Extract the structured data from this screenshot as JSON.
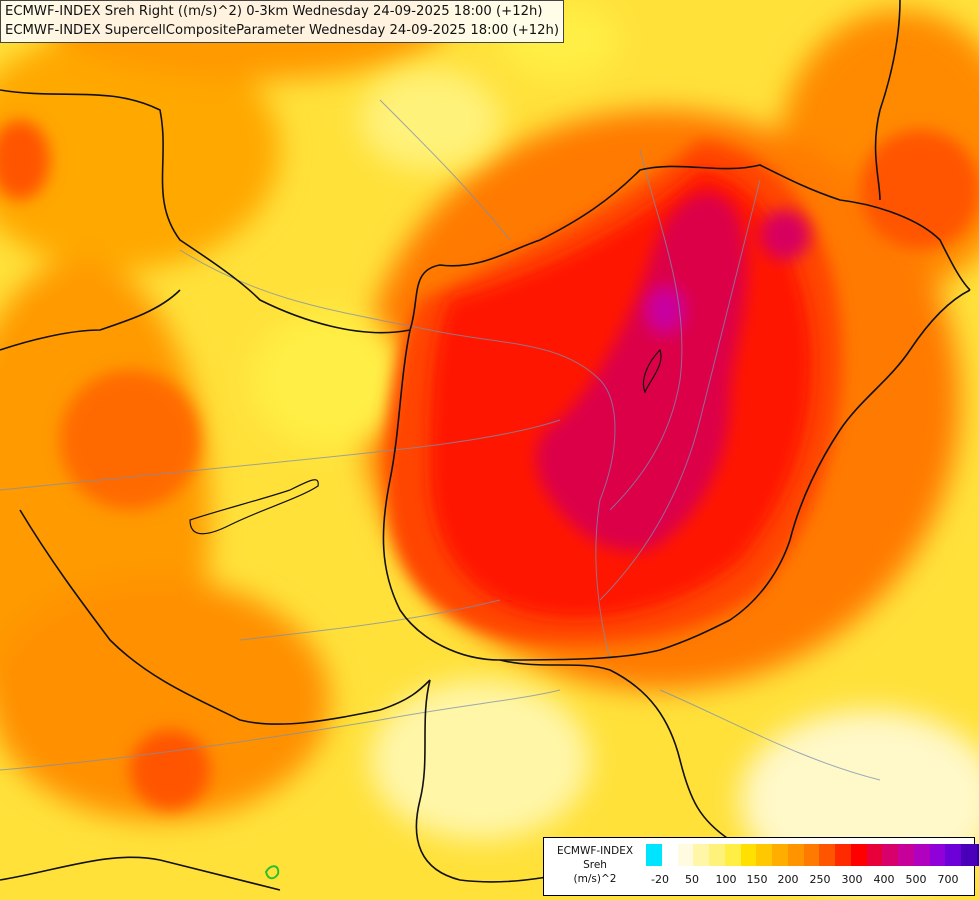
{
  "title": {
    "line1": "ECMWF-INDEX Sreh Right ((m/s)^2) 0-3km Wednesday 24-09-2025 18:00 (+12h)",
    "line2": "ECMWF-INDEX SupercellCompositeParameter Wednesday 24-09-2025 18:00 (+12h)"
  },
  "legend": {
    "source": "ECMWF-INDEX",
    "parameter": "Sreh",
    "unit": "(m/s)^2",
    "colors": [
      "#00e5ff",
      "#ffffff",
      "#fffbe0",
      "#fff6a8",
      "#fff27a",
      "#ffee44",
      "#ffe000",
      "#ffc800",
      "#ffae00",
      "#ff9400",
      "#ff7a00",
      "#ff5500",
      "#ff2a00",
      "#ff0000",
      "#e8003a",
      "#d8006a",
      "#c8009a",
      "#b000c0",
      "#9000d8",
      "#6d00d8",
      "#4a00b8",
      "#2a00a0"
    ],
    "ticks": [
      "-20",
      "50",
      "100",
      "150",
      "200",
      "250",
      "300",
      "400",
      "500",
      "700"
    ]
  }
}
